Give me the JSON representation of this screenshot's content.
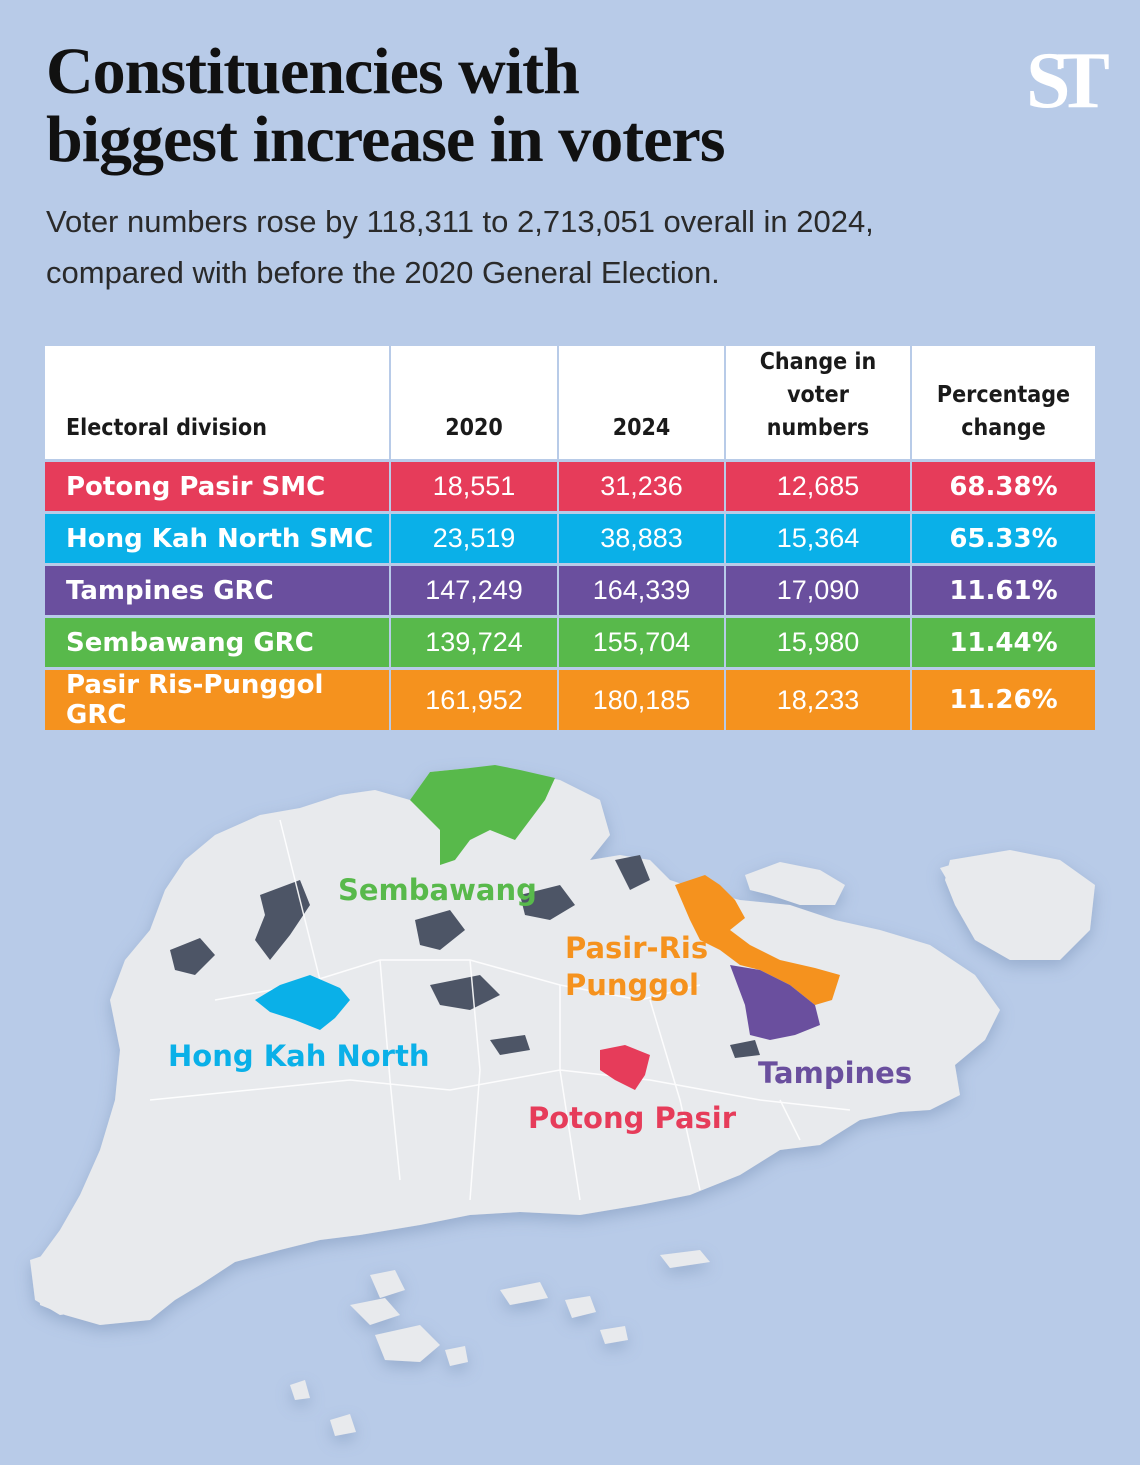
{
  "title_line1": "Constituencies with",
  "title_line2": "biggest increase in voters",
  "subtitle_line1": "Voter numbers rose by 118,311 to 2,713,051 overall in 2024,",
  "subtitle_line2": "compared with before the 2020 General Election.",
  "logo": "ST",
  "table": {
    "headers": {
      "division": "Electoral division",
      "y2020": "2020",
      "y2024": "2024",
      "change_line1": "Change in",
      "change_line2": "voter numbers",
      "pct_line1": "Percentage",
      "pct_line2": "change"
    },
    "rows": [
      {
        "name": "Potong Pasir SMC",
        "v2020": "18,551",
        "v2024": "31,236",
        "change": "12,685",
        "pct": "68.38%",
        "color": "#e63c5a"
      },
      {
        "name": "Hong Kah North SMC",
        "v2020": "23,519",
        "v2024": "38,883",
        "change": "15,364",
        "pct": "65.33%",
        "color": "#0ab0e8"
      },
      {
        "name": "Tampines GRC",
        "v2020": "147,249",
        "v2024": "164,339",
        "change": "17,090",
        "pct": "11.61%",
        "color": "#6a4f9e"
      },
      {
        "name": "Sembawang GRC",
        "v2020": "139,724",
        "v2024": "155,704",
        "change": "15,980",
        "pct": "11.44%",
        "color": "#58b94b"
      },
      {
        "name": "Pasir Ris-Punggol GRC",
        "v2020": "161,952",
        "v2024": "180,185",
        "change": "18,233",
        "pct": "11.26%",
        "color": "#f5921e"
      }
    ]
  },
  "map": {
    "land_color": "#e8eaed",
    "water_color": "#4d5566",
    "labels": {
      "sembawang": "Sembawang",
      "pasir_ris_1": "Pasir-Ris",
      "pasir_ris_2": "Punggol",
      "hong_kah_north": "Hong Kah North",
      "tampines": "Tampines",
      "potong_pasir": "Potong Pasir"
    },
    "colors": {
      "sembawang": "#58b94b",
      "pasir_ris": "#f5921e",
      "hong_kah_north": "#0ab0e8",
      "tampines": "#6a4f9e",
      "potong_pasir": "#e63c5a"
    }
  }
}
